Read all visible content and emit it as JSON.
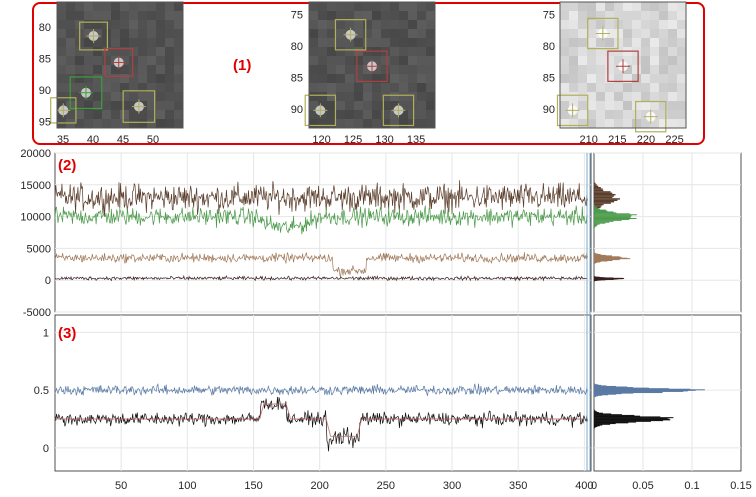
{
  "panel_labels": {
    "p1": "(1)",
    "p2": "(2)",
    "p3": "(3)"
  },
  "colors": {
    "highlight": "#e00000",
    "box_neighbor": "#b0b05a",
    "box_target": "#b04040",
    "box_green": "#3aa03a",
    "grid": "#e6e6e6",
    "axis": "#262626"
  },
  "thumbnails": [
    {
      "xticks": [
        "35",
        "40",
        "45",
        "50"
      ],
      "yticks": [
        "80",
        "85",
        "90",
        "95"
      ],
      "xrange": [
        34,
        55
      ],
      "yrange": [
        76,
        96
      ],
      "bg": "dark"
    },
    {
      "xticks": [
        "120",
        "125",
        "130",
        "135"
      ],
      "yticks": [
        "75",
        "80",
        "85",
        "90"
      ],
      "xrange": [
        118,
        138
      ],
      "yrange": [
        73,
        93
      ],
      "bg": "dark"
    },
    {
      "xticks": [
        "210",
        "215",
        "220",
        "225"
      ],
      "yticks": [
        "75",
        "80",
        "85",
        "90"
      ],
      "xrange": [
        205,
        227
      ],
      "yrange": [
        73,
        93
      ],
      "bg": "light"
    }
  ],
  "chart_data": [
    {
      "type": "line",
      "panel": "(2)",
      "xlim": [
        0,
        405
      ],
      "ylim": [
        -5000,
        20000
      ],
      "yticks": [
        "20000",
        "15000",
        "10000",
        "5000",
        "0",
        "-5000"
      ],
      "series": [
        {
          "color": "#5a3d2b",
          "mean": 13000,
          "noise": 1500
        },
        {
          "color": "#4a9a4a",
          "mean": 10000,
          "noise": 1000
        },
        {
          "color": "#a07a5a",
          "mean": 3500,
          "noise": 500
        },
        {
          "color": "#3a1f1f",
          "mean": 300,
          "noise": 200
        }
      ],
      "hist_xlim": [
        0,
        0.15
      ]
    },
    {
      "type": "line",
      "panel": "(3)",
      "xlim": [
        0,
        405
      ],
      "ylim": [
        -0.2,
        1.15
      ],
      "yticks": [
        "1",
        "0.5",
        "0"
      ],
      "xticks": [
        "50",
        "100",
        "150",
        "200",
        "250",
        "300",
        "350",
        "400"
      ],
      "series": [
        {
          "color": "#5a7aa5",
          "mean": 0.5,
          "noise": 0.03
        },
        {
          "color": "#111111",
          "mean": 0.25,
          "noise": 0.04
        }
      ],
      "hist_xlim": [
        0,
        0.15
      ],
      "hist_xticks": [
        "0",
        "0.05",
        "0.1",
        "0.15"
      ]
    }
  ]
}
